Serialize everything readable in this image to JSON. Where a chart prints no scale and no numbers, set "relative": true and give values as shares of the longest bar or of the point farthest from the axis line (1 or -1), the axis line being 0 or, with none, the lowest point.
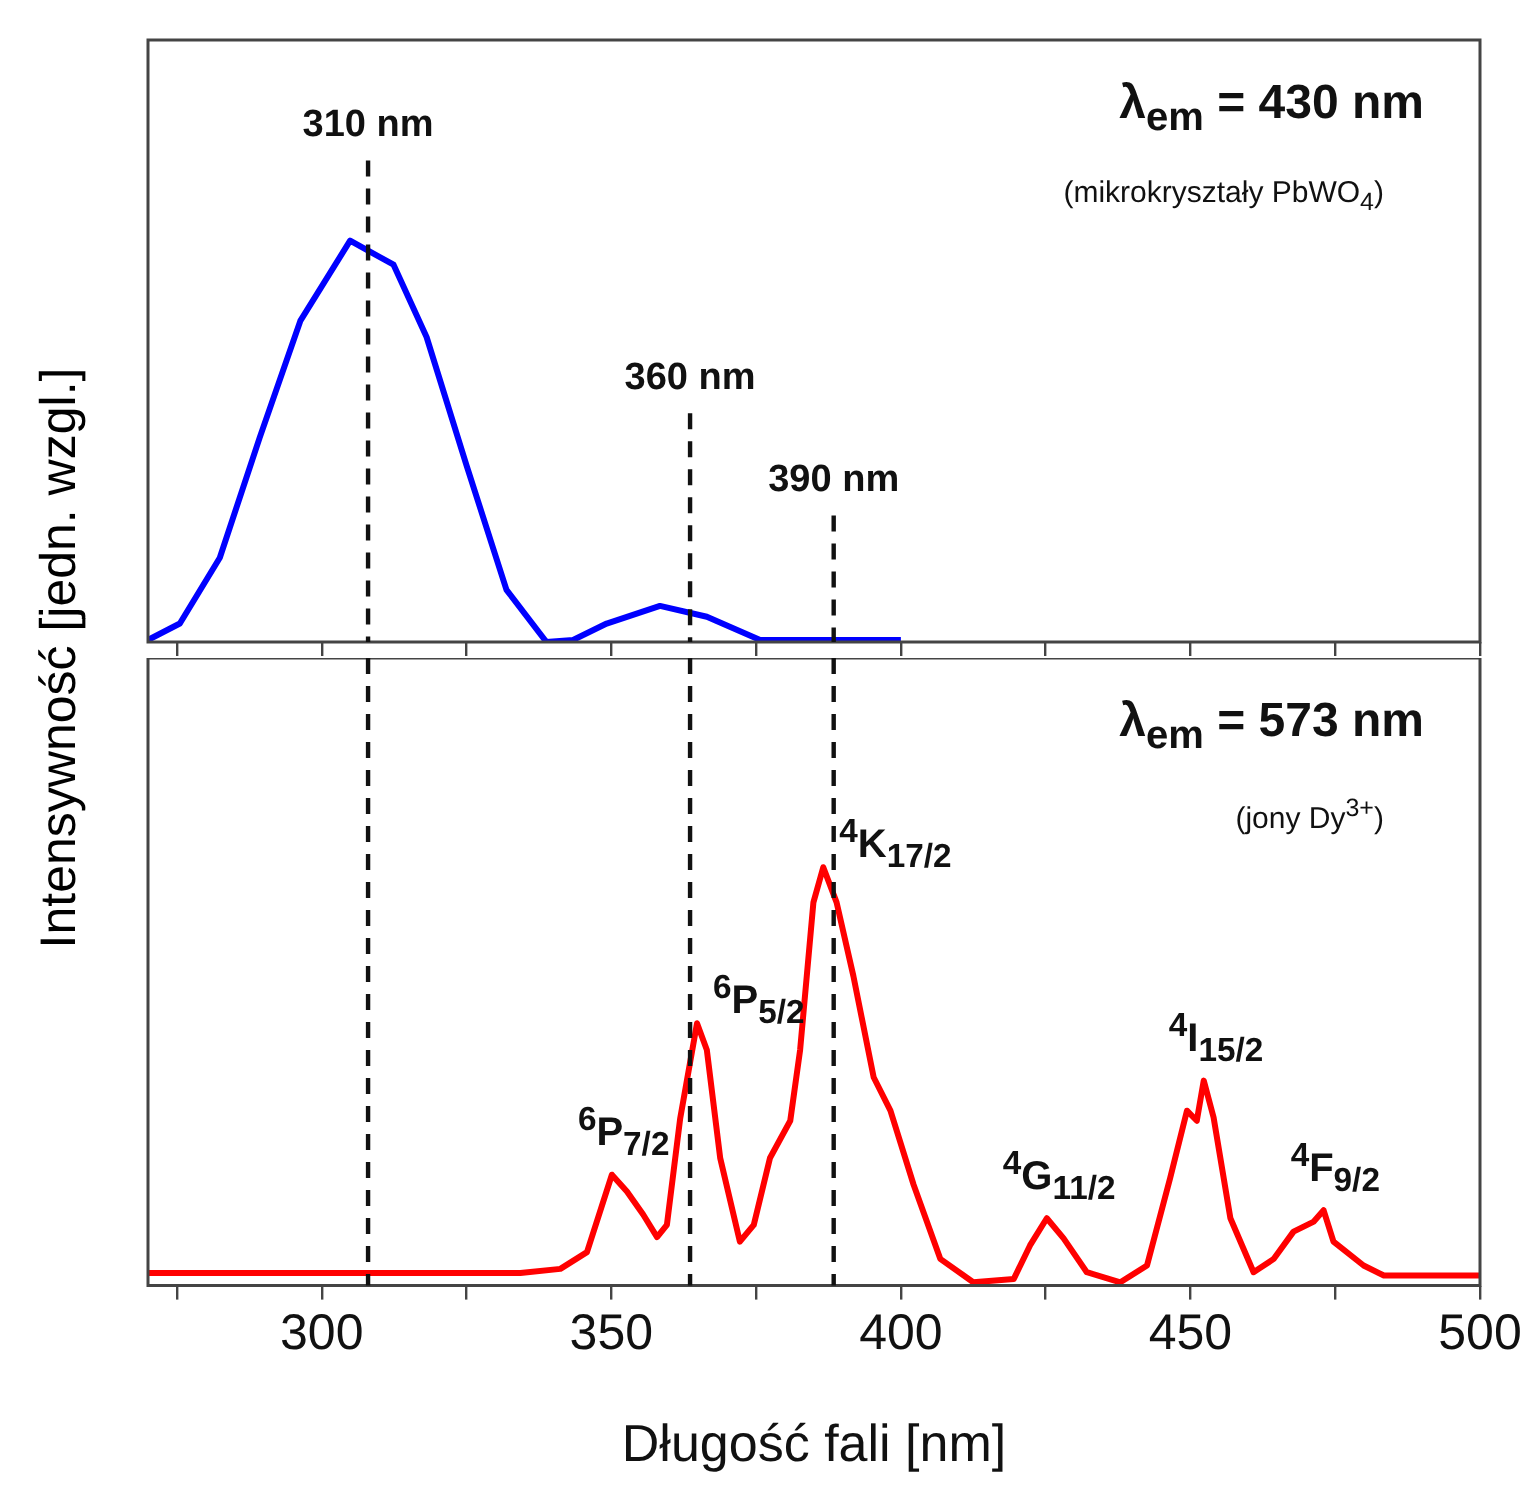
{
  "chart_data": [
    {
      "type": "line",
      "ylabel": "Intensywność [jedn. wzgl.]",
      "relative": true,
      "xlim": [
        270,
        500
      ],
      "xticks": [
        {
          "value": 275,
          "label": null
        },
        300,
        {
          "value": 325,
          "label": null
        },
        350,
        {
          "value": 375,
          "label": null
        },
        400,
        {
          "value": 425,
          "label": null
        },
        450,
        {
          "value": 475,
          "label": null
        },
        500
      ],
      "tick_labels": false,
      "annotations": [
        "λ$_{em}$ = 430 nm",
        "(mikrokryształy PbWO$_{4}$)"
      ],
      "ref_lines": [
        {
          "axis": "x",
          "value": 308,
          "label": "310 nm"
        },
        {
          "axis": "x",
          "value": 363.6,
          "label": "360 nm"
        },
        {
          "axis": "x",
          "value": 388.4,
          "label": "390 nm"
        }
      ],
      "series": [
        {
          "color": "#0000ff",
          "x": [
            270,
            275.5,
            282.4,
            289.3,
            296.3,
            304.9,
            312.4,
            318.1,
            325,
            331.9,
            338.8,
            343.4,
            349.2,
            358.4,
            366.5,
            375.7,
            400
          ],
          "values": [
            0.005,
            0.046,
            0.21,
            0.51,
            0.8,
            1,
            0.94,
            0.76,
            0.44,
            0.13,
            0,
            0.005,
            0.046,
            0.09,
            0.063,
            0.005,
            0.005
          ]
        }
      ]
    },
    {
      "type": "line",
      "xlabel": "Długość fali [nm]",
      "relative": true,
      "xlim": [
        270,
        500
      ],
      "xticks": [
        {
          "value": 275,
          "label": null
        },
        300,
        {
          "value": 325,
          "label": null
        },
        350,
        {
          "value": 375,
          "label": null
        },
        400,
        {
          "value": 425,
          "label": null
        },
        450,
        {
          "value": 475,
          "label": null
        },
        500
      ],
      "tick_labels": "x",
      "annotations": [
        "λ$_{em}$ = 573 nm",
        "(jony Dy$^{3+}$)",
        {
          "text": "$^{6}$P$_{7/2}$",
          "x": 350.1,
          "y": 0.265
        },
        {
          "text": "$^{6}$P$_{5/2}$",
          "x": 364.8,
          "y": 0.627
        },
        {
          "text": "$^{4}$K$_{17/2}$",
          "x": 386.6,
          "y": 1
        },
        {
          "text": "$^{4}$G$_{11/2}$",
          "x": 425.2,
          "y": 0.161
        },
        {
          "text": "$^{4}$I$_{15/2}$",
          "x": 452.3,
          "y": 0.49
        },
        {
          "text": "$^{4}$F$_{9/2}$",
          "x": 473,
          "y": 0.18
        }
      ],
      "ref_lines": [
        {
          "axis": "x",
          "value": 308
        },
        {
          "axis": "x",
          "value": 363.6
        },
        {
          "axis": "x",
          "value": 388.4
        }
      ],
      "series": [
        {
          "color": "#ff0000",
          "x": [
            270,
            334.3,
            341.2,
            345.8,
            350.1,
            352.7,
            355.5,
            357.9,
            359.6,
            361.9,
            364.8,
            366.5,
            368.8,
            372.2,
            374.6,
            377.4,
            380.9,
            382.6,
            384.9,
            386.6,
            388.9,
            391.8,
            395.3,
            398.2,
            402.2,
            406.8,
            412.5,
            419.5,
            422.3,
            425.2,
            428.1,
            432.1,
            437.9,
            442.5,
            446.5,
            449.4,
            451.1,
            452.3,
            454,
            456.9,
            460.9,
            464.4,
            467.8,
            471.3,
            473,
            474.7,
            479.9,
            483.4,
            500
          ],
          "values": [
            0.03,
            0.03,
            0.04,
            0.08,
            0.265,
            0.225,
            0.17,
            0.116,
            0.145,
            0.4,
            0.627,
            0.563,
            0.305,
            0.105,
            0.145,
            0.305,
            0.394,
            0.563,
            0.916,
            1,
            0.916,
            0.74,
            0.498,
            0.418,
            0.241,
            0.064,
            0.008,
            0.016,
            0.096,
            0.161,
            0.113,
            0.032,
            0.008,
            0.048,
            0.257,
            0.418,
            0.394,
            0.49,
            0.402,
            0.161,
            0.032,
            0.064,
            0.129,
            0.153,
            0.18,
            0.105,
            0.048,
            0.024,
            0.024
          ]
        }
      ]
    }
  ]
}
